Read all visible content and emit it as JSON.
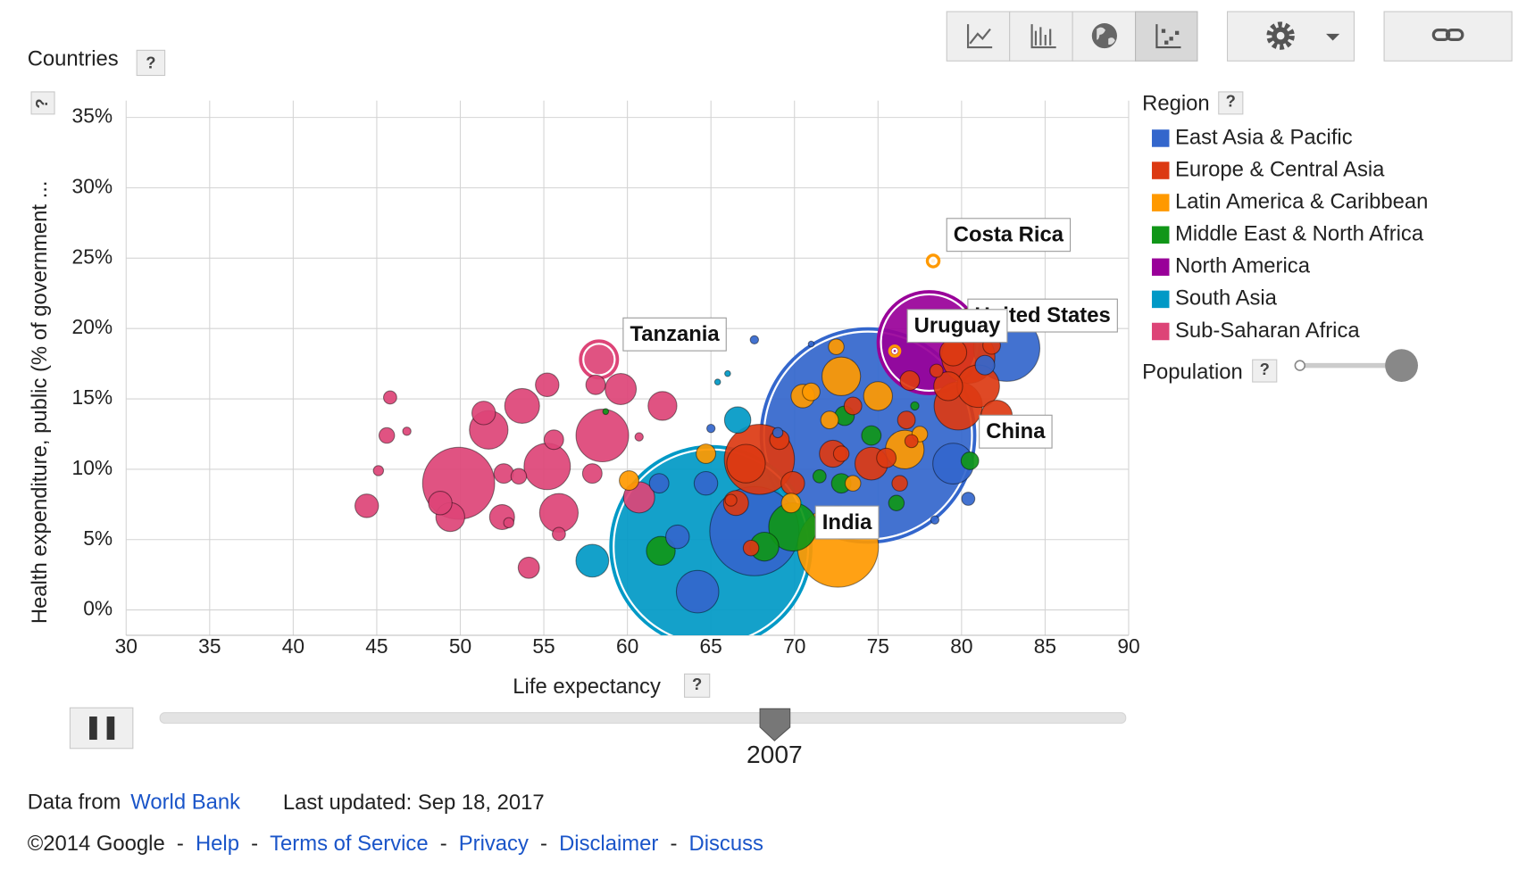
{
  "header": {
    "title": "Countries"
  },
  "help": "?",
  "chart_data": {
    "type": "bubble",
    "xlabel": "Life expectancy",
    "ylabel": "Health expenditure, public (% of government ...",
    "xlim": [
      30,
      90
    ],
    "ylim": [
      -1.8,
      36.2
    ],
    "xticks": [
      30,
      35,
      40,
      45,
      50,
      55,
      60,
      65,
      70,
      75,
      80,
      85,
      90
    ],
    "yticks": [
      {
        "value": 0,
        "label": "0%"
      },
      {
        "value": 5,
        "label": "5%"
      },
      {
        "value": 10,
        "label": "10%"
      },
      {
        "value": 15,
        "label": "15%"
      },
      {
        "value": 20,
        "label": "20%"
      },
      {
        "value": 25,
        "label": "25%"
      },
      {
        "value": 30,
        "label": "30%"
      },
      {
        "value": 35,
        "label": "35%"
      }
    ],
    "grid": true,
    "legend_title": "Region",
    "size_label": "Population",
    "series": [
      {
        "name": "East Asia & Pacific",
        "color": "#3366cc",
        "x": [
          74.4,
          67.6,
          82.7,
          79.5,
          64.2,
          63.0,
          64.7,
          61.9,
          67.6,
          65.7,
          71.0,
          80.4,
          65.0,
          78.4,
          81.4,
          69.0
        ],
        "values": [
          12.4,
          5.6,
          18.6,
          10.4,
          1.3,
          5.2,
          9.0,
          9.0,
          19.2,
          19.3,
          18.9,
          7.9,
          12.9,
          6.4,
          17.4,
          12.6
        ],
        "sizes": [
          1320,
          230,
          127,
          48,
          52,
          16,
          16,
          11,
          2,
          1,
          1,
          5,
          2,
          2,
          11,
          3
        ],
        "labels": [
          "China",
          null,
          null,
          null,
          null,
          null,
          null,
          null,
          null,
          null,
          null,
          null,
          null,
          null,
          null,
          null
        ]
      },
      {
        "name": "Europe & Central Asia",
        "color": "#dc3912",
        "x": [
          67.9,
          80.4,
          79.8,
          81.0,
          79.2,
          79.5,
          74.6,
          72.3,
          75.5,
          69.9,
          66.5,
          67.1,
          76.7,
          76.3,
          67.4,
          76.9,
          82.1,
          80.4,
          69.1,
          73.5,
          72.8,
          77.0,
          78.5,
          81.8,
          66.2
        ],
        "values": [
          10.7,
          18.0,
          14.5,
          15.9,
          15.9,
          18.3,
          10.4,
          11.1,
          10.8,
          9.0,
          7.6,
          10.4,
          13.5,
          9.0,
          4.4,
          16.3,
          13.8,
          20.6,
          12.1,
          14.5,
          11.1,
          12.0,
          17.0,
          18.8,
          7.8
        ],
        "sizes": [
          142,
          82,
          67,
          52,
          24,
          21,
          31,
          21,
          11,
          16,
          18,
          43,
          9,
          7,
          7,
          11,
          28,
          16,
          11,
          9,
          7,
          5,
          5,
          9,
          4
        ]
      },
      {
        "name": "Latin America & Caribbean",
        "color": "#ff9900",
        "x": [
          78.3,
          76.0,
          72.6,
          72.8,
          76.6,
          75.0,
          70.5,
          60.1,
          64.7,
          72.5,
          72.1,
          73.5,
          69.8,
          71.0,
          77.5
        ],
        "values": [
          24.8,
          18.4,
          4.5,
          16.6,
          11.4,
          15.2,
          15.2,
          9.2,
          11.1,
          18.7,
          13.5,
          9.0,
          7.6,
          15.5,
          12.5
        ],
        "sizes": [
          4,
          3,
          190,
          43,
          43,
          24,
          16,
          11,
          11,
          7,
          9,
          7,
          11,
          9,
          7
        ],
        "labels": [
          "Costa Rica",
          "Uruguay",
          null,
          null,
          null,
          null,
          null,
          null,
          null,
          null,
          null,
          null,
          null,
          null,
          null
        ]
      },
      {
        "name": "Middle East & North Africa",
        "color": "#109618",
        "x": [
          69.9,
          62.0,
          68.2,
          73.0,
          74.6,
          72.8,
          80.5,
          58.7,
          77.2,
          76.1,
          71.5
        ],
        "values": [
          5.9,
          4.2,
          4.5,
          13.8,
          12.4,
          9.0,
          10.6,
          14.1,
          14.5,
          7.6,
          9.5
        ],
        "sizes": [
          67,
          24,
          24,
          11,
          11,
          11,
          9,
          1,
          2,
          7,
          5
        ]
      },
      {
        "name": "North America",
        "color": "#990099",
        "x": [
          78.06
        ],
        "values": [
          19.0
        ],
        "sizes": [
          302
        ],
        "labels": [
          "United States"
        ]
      },
      {
        "name": "South Asia",
        "color": "#0099c6",
        "x": [
          65.0,
          57.9,
          66.6,
          66.0,
          65.4
        ],
        "values": [
          4.5,
          3.5,
          13.5,
          16.8,
          16.2
        ],
        "sizes": [
          1160,
          31,
          20,
          1,
          1
        ],
        "labels": [
          "India",
          null,
          null,
          null,
          null
        ]
      },
      {
        "name": "Sub-Saharan Africa",
        "color": "#dd4477",
        "x": [
          58.3,
          49.9,
          58.5,
          55.2,
          55.9,
          53.7,
          51.7,
          59.6,
          62.1,
          55.2,
          58.1,
          49.4,
          48.8,
          52.5,
          52.6,
          54.1,
          44.4,
          45.6,
          45.8,
          45.1,
          46.8,
          57.9,
          55.6,
          60.7,
          60.7,
          52.9,
          55.9,
          53.5,
          51.4
        ],
        "values": [
          17.8,
          9.0,
          12.4,
          10.2,
          6.9,
          14.5,
          12.8,
          15.7,
          14.5,
          16.0,
          16.0,
          6.6,
          7.6,
          6.6,
          9.7,
          3.0,
          7.4,
          12.4,
          15.1,
          9.9,
          12.7,
          9.7,
          12.1,
          8.0,
          12.3,
          6.2,
          5.4,
          9.5,
          14.0
        ],
        "sizes": [
          40,
          150,
          80,
          62,
          43,
          35,
          43,
          28,
          24,
          16,
          11,
          24,
          16,
          18,
          11,
          13,
          16,
          7,
          5,
          3,
          2,
          11,
          11,
          28,
          2,
          3,
          5,
          7,
          16
        ],
        "labels": [
          "Tanzania",
          null,
          null,
          null,
          null,
          null,
          null,
          null,
          null,
          null,
          null,
          null,
          null,
          null,
          null,
          null,
          null,
          null,
          null,
          null,
          null,
          null,
          null,
          null,
          null,
          null,
          null,
          null,
          null
        ]
      }
    ]
  },
  "player": {
    "year": 2007
  },
  "footer": {
    "source_prefix": "Data from",
    "source": "World Bank",
    "updated": "Last updated: Sep 18, 2017",
    "copyright": "©2014 Google",
    "separator": "-",
    "links": [
      "Help",
      "Terms of Service",
      "Privacy",
      "Disclaimer",
      "Discuss"
    ]
  }
}
